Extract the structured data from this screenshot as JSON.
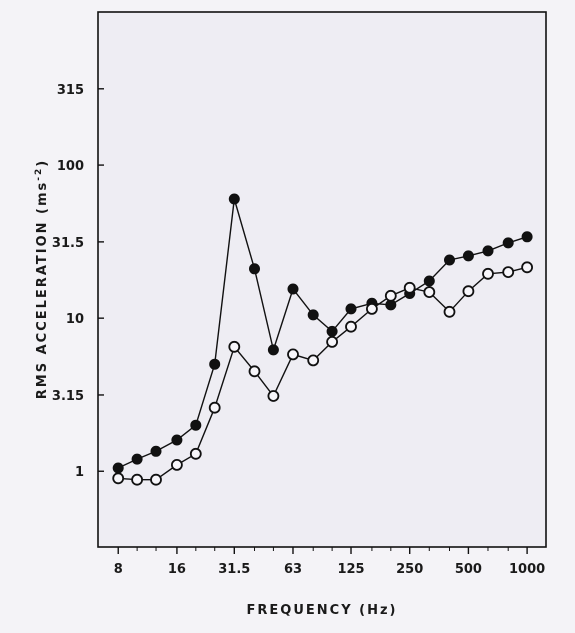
{
  "chart_data": {
    "type": "line",
    "title": "",
    "xlabel": "FREQUENCY  (Hz)",
    "ylabel": "RMS  ACCELERATION  (ms",
    "ylabel_sup": "-2",
    "ylabel_close": ")",
    "xscale": "log",
    "yscale": "log",
    "xlim": [
      6.3,
      1250
    ],
    "ylim": [
      0.32,
      1000
    ],
    "grid": false,
    "legend": "none",
    "x_ticks": [
      8,
      16,
      31.5,
      63,
      125,
      250,
      500,
      1000
    ],
    "x_tick_labels": [
      "8",
      "16",
      "31.5",
      "63",
      "125",
      "250",
      "500",
      "1000"
    ],
    "y_ticks": [
      1,
      3.15,
      10,
      31.5,
      100,
      315
    ],
    "y_tick_labels": [
      "1",
      "3.15",
      "10",
      "31.5",
      "100",
      "315"
    ],
    "x": [
      8,
      10,
      12.5,
      16,
      20,
      25,
      31.5,
      40,
      50,
      63,
      80,
      100,
      125,
      160,
      200,
      250,
      315,
      400,
      500,
      630,
      800,
      1000
    ],
    "series": [
      {
        "marker": "filled-circle",
        "color": "#111111",
        "values": [
          1.05,
          1.2,
          1.35,
          1.6,
          2.0,
          5.0,
          60,
          21,
          6.2,
          15.5,
          10.5,
          8.2,
          11.5,
          12.5,
          12.2,
          14.5,
          17.5,
          24,
          25.5,
          27.5,
          31.0,
          34.0
        ]
      },
      {
        "marker": "open-circle",
        "color": "#111111",
        "values": [
          0.9,
          0.88,
          0.88,
          1.1,
          1.3,
          2.6,
          6.5,
          4.5,
          3.1,
          5.8,
          5.3,
          7.0,
          8.8,
          11.5,
          14.0,
          15.8,
          14.8,
          11.0,
          15.0,
          19.5,
          20.0,
          21.5
        ]
      }
    ]
  }
}
